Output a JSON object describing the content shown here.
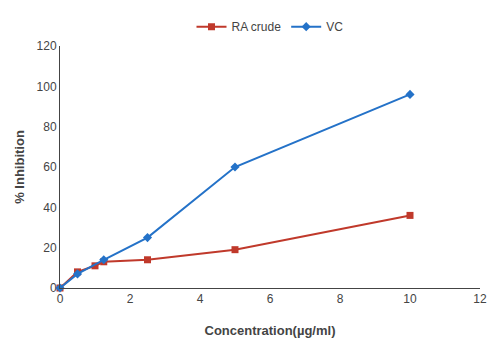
{
  "chart_data": {
    "type": "line",
    "xlabel": "Concentration(µg/ml)",
    "ylabel": "% Inhibition",
    "series": [
      {
        "name": "RA crude",
        "color": "#c0392b",
        "marker": "square",
        "x": [
          0,
          0.5,
          1.0,
          1.25,
          2.5,
          5.0,
          10.0
        ],
        "values": [
          0,
          8,
          11,
          13,
          14,
          19,
          36
        ]
      },
      {
        "name": "VC",
        "color": "#2472c8",
        "marker": "diamond",
        "x": [
          0,
          0.5,
          1.25,
          2.5,
          5.0,
          10.0
        ],
        "values": [
          0,
          7,
          14,
          25,
          60,
          96
        ]
      }
    ],
    "xlim": [
      0,
      12
    ],
    "ylim": [
      0,
      120
    ],
    "xticks": [
      0,
      2,
      4,
      6,
      8,
      10,
      12
    ],
    "yticks": [
      0,
      20,
      40,
      60,
      80,
      100,
      120
    ],
    "grid": false,
    "legend": "top"
  }
}
